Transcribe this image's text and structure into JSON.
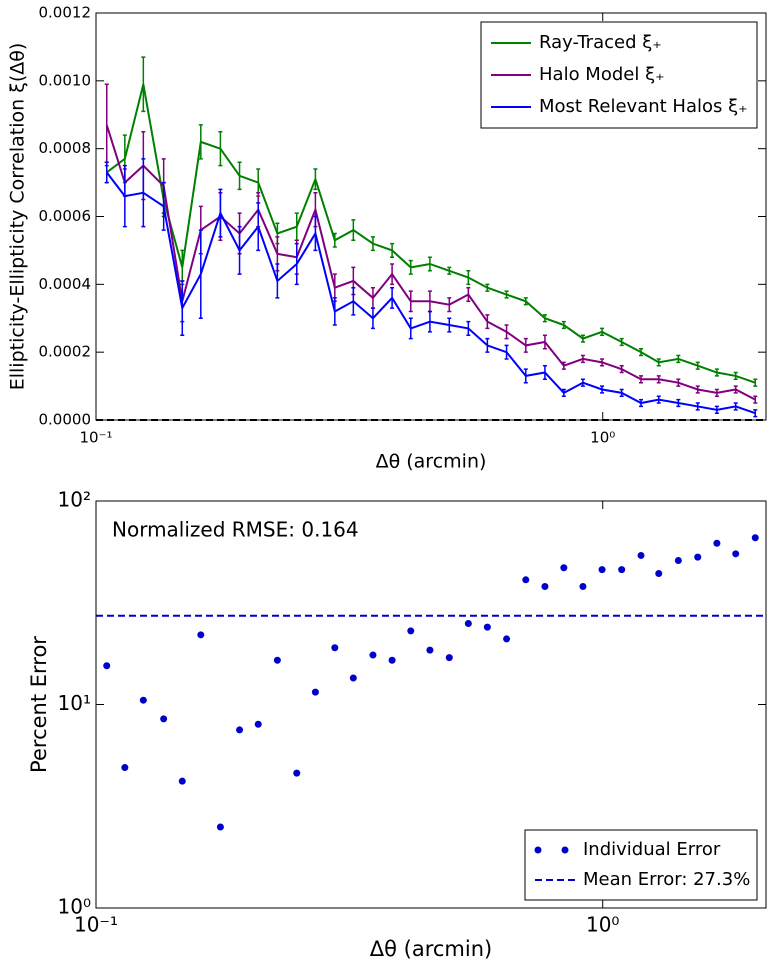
{
  "chart_data": [
    {
      "type": "line",
      "xlabel": "Δθ (arcmin)",
      "ylabel": "Ellipticity-Ellipticity Correlation ξ(Δθ)",
      "xscale": "log",
      "x": [
        0.105,
        0.114,
        0.124,
        0.136,
        0.148,
        0.161,
        0.176,
        0.192,
        0.209,
        0.228,
        0.249,
        0.271,
        0.296,
        0.322,
        0.352,
        0.384,
        0.418,
        0.456,
        0.498,
        0.543,
        0.592,
        0.646,
        0.705,
        0.769,
        0.838,
        0.914,
        0.997,
        1.09,
        1.19,
        1.29,
        1.41,
        1.54,
        1.68,
        1.83,
        2.0
      ],
      "xlim": [
        0.1,
        2.1
      ],
      "xticks": [
        {
          "value": 0.1,
          "label": "10⁻¹"
        },
        {
          "value": 1,
          "label": "10⁰"
        }
      ],
      "ylim": [
        0,
        0.0012
      ],
      "yticks": [
        {
          "value": 0,
          "label": "0.0000"
        },
        {
          "value": 0.0002,
          "label": "0.0002"
        },
        {
          "value": 0.0004,
          "label": "0.0004"
        },
        {
          "value": 0.0006,
          "label": "0.0006"
        },
        {
          "value": 0.0008,
          "label": "0.0008"
        },
        {
          "value": 0.001,
          "label": "0.0010"
        },
        {
          "value": 0.0012,
          "label": "0.0012"
        }
      ],
      "series": [
        {
          "name": "Ray-Traced ξ₊",
          "color": "#008000",
          "values": [
            0.00073,
            0.00077,
            0.00099,
            0.00065,
            0.00045,
            0.00082,
            0.0008,
            0.00072,
            0.0007,
            0.00055,
            0.00057,
            0.00071,
            0.00053,
            0.00056,
            0.00052,
            0.0005,
            0.00045,
            0.00046,
            0.00044,
            0.00042,
            0.00039,
            0.00037,
            0.00035,
            0.0003,
            0.00028,
            0.00024,
            0.00026,
            0.00023,
            0.0002,
            0.00017,
            0.00018,
            0.00016,
            0.00014,
            0.00013,
            0.00011
          ],
          "errors": [
            3e-05,
            7e-05,
            8e-05,
            5e-05,
            5e-05,
            5e-05,
            5e-05,
            4e-05,
            4e-05,
            3e-05,
            4e-05,
            3e-05,
            2e-05,
            3e-05,
            2e-05,
            2e-05,
            2e-05,
            2e-05,
            1e-05,
            2e-05,
            1e-05,
            1e-05,
            1e-05,
            1e-05,
            1e-05,
            1e-05,
            1e-05,
            1e-05,
            1e-05,
            1e-05,
            1e-05,
            1e-05,
            1e-05,
            1e-05,
            1e-05
          ]
        },
        {
          "name": "Halo Model ξ₊",
          "color": "#800080",
          "values": [
            0.00087,
            0.0007,
            0.00075,
            0.00069,
            0.00035,
            0.00056,
            0.0006,
            0.00055,
            0.00062,
            0.00049,
            0.00048,
            0.00062,
            0.00039,
            0.00041,
            0.00036,
            0.00043,
            0.00035,
            0.00035,
            0.00034,
            0.00037,
            0.00029,
            0.00026,
            0.00022,
            0.00023,
            0.00016,
            0.00018,
            0.00017,
            0.00015,
            0.00012,
            0.00012,
            0.00011,
            9e-05,
            8e-05,
            9e-05,
            6e-05
          ],
          "errors": [
            0.00012,
            4e-05,
            0.0001,
            8e-05,
            6e-05,
            7e-05,
            7e-05,
            6e-05,
            5e-05,
            5e-05,
            5e-05,
            5e-05,
            4e-05,
            4e-05,
            3e-05,
            3e-05,
            3e-05,
            3e-05,
            2e-05,
            2e-05,
            2e-05,
            2e-05,
            2e-05,
            2e-05,
            1e-05,
            1e-05,
            1e-05,
            1e-05,
            1e-05,
            1e-05,
            1e-05,
            1e-05,
            1e-05,
            1e-05,
            1e-05
          ]
        },
        {
          "name": "Most Relevant Halos ξ₊",
          "color": "#0000ff",
          "values": [
            0.00073,
            0.00066,
            0.00067,
            0.00063,
            0.00033,
            0.00043,
            0.00061,
            0.0005,
            0.00057,
            0.00041,
            0.00046,
            0.00055,
            0.00032,
            0.00035,
            0.0003,
            0.00036,
            0.00027,
            0.00029,
            0.00028,
            0.00027,
            0.00022,
            0.0002,
            0.00013,
            0.00014,
            8e-05,
            0.00011,
            9e-05,
            8e-05,
            5e-05,
            6e-05,
            5e-05,
            4e-05,
            3e-05,
            4e-05,
            2e-05
          ],
          "errors": [
            3e-05,
            9e-05,
            0.0001,
            7e-05,
            8e-05,
            0.00013,
            7e-05,
            7e-05,
            7e-05,
            5e-05,
            6e-05,
            5e-05,
            4e-05,
            4e-05,
            3e-05,
            3e-05,
            3e-05,
            3e-05,
            2e-05,
            2e-05,
            2e-05,
            2e-05,
            2e-05,
            2e-05,
            1e-05,
            1e-05,
            1e-05,
            1e-05,
            1e-05,
            1e-05,
            1e-05,
            1e-05,
            1e-05,
            1e-05,
            1e-05
          ]
        }
      ],
      "hlines": [
        {
          "value": 0,
          "color": "#000000"
        }
      ],
      "legend": "upper right"
    },
    {
      "type": "scatter",
      "xlabel": "Δθ (arcmin)",
      "ylabel": "Percent Error",
      "annotation": "Normalized RMSE: 0.164",
      "xscale": "log",
      "yscale": "log",
      "x": [
        0.105,
        0.114,
        0.124,
        0.136,
        0.148,
        0.161,
        0.176,
        0.192,
        0.209,
        0.228,
        0.249,
        0.271,
        0.296,
        0.322,
        0.352,
        0.384,
        0.418,
        0.456,
        0.498,
        0.543,
        0.592,
        0.646,
        0.705,
        0.769,
        0.838,
        0.914,
        0.997,
        1.09,
        1.19,
        1.29,
        1.41,
        1.54,
        1.68,
        1.83,
        2.0
      ],
      "xlim": [
        0.1,
        2.1
      ],
      "xticks": [
        {
          "value": 0.1,
          "label": "10⁻¹"
        },
        {
          "value": 1,
          "label": "10⁰"
        }
      ],
      "ylim": [
        1,
        100
      ],
      "yticks": [
        {
          "value": 1,
          "label": "10⁰"
        },
        {
          "value": 10,
          "label": "10¹"
        },
        {
          "value": 100,
          "label": "10²"
        }
      ],
      "series": [
        {
          "name": "Individual Error",
          "color": "#0000cc",
          "values": [
            15.5,
            4.9,
            10.5,
            8.5,
            4.2,
            22,
            2.5,
            7.5,
            8,
            16.5,
            4.6,
            11.5,
            19,
            13.5,
            17.5,
            16.5,
            23,
            18.5,
            17,
            25,
            24,
            21,
            41,
            38,
            47,
            38,
            46,
            46,
            54,
            44,
            51,
            53,
            62,
            55,
            66
          ]
        }
      ],
      "hlines": [
        {
          "name": "Mean Error: 27.3%",
          "value": 27.3,
          "color": "#0000cc"
        }
      ],
      "legend": "lower right"
    }
  ]
}
